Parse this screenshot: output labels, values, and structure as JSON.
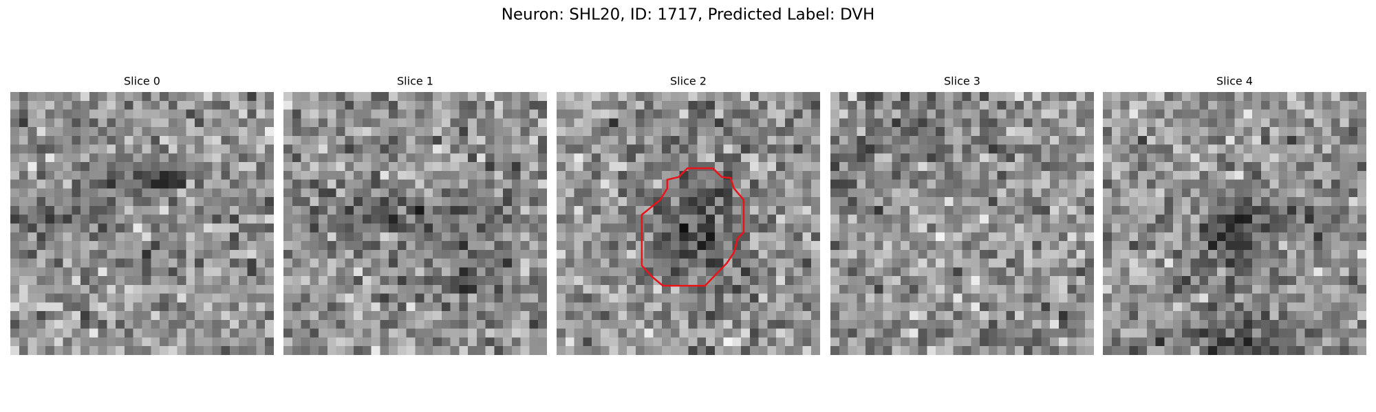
{
  "title": "Neuron: SHL20, ID: 1717, Predicted Label: DVH",
  "panels": [
    {
      "title": "Slice 0"
    },
    {
      "title": "Slice 1"
    },
    {
      "title": "Slice 2"
    },
    {
      "title": "Slice 3"
    },
    {
      "title": "Slice 4"
    }
  ]
}
